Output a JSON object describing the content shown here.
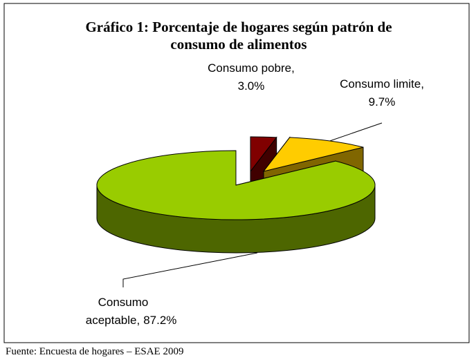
{
  "chart_data": {
    "type": "pie",
    "title": "Gráfico 1: Porcentaje de hogares según patrón de consumo de alimentos",
    "categories": [
      "Consumo pobre,",
      "Consumo limite,",
      "Consumo aceptable,"
    ],
    "values": [
      3.0,
      9.7,
      87.2
    ],
    "value_labels": [
      "3.0%",
      "9.7%",
      "87.2%"
    ],
    "colors": [
      "#800000",
      "#ffcc00",
      "#99cc00"
    ],
    "side_colors": [
      "#400000",
      "#806600",
      "#4d6600"
    ],
    "three_d": true,
    "source": "Fuente: Encuesta de hogares – ESAE 2009"
  }
}
